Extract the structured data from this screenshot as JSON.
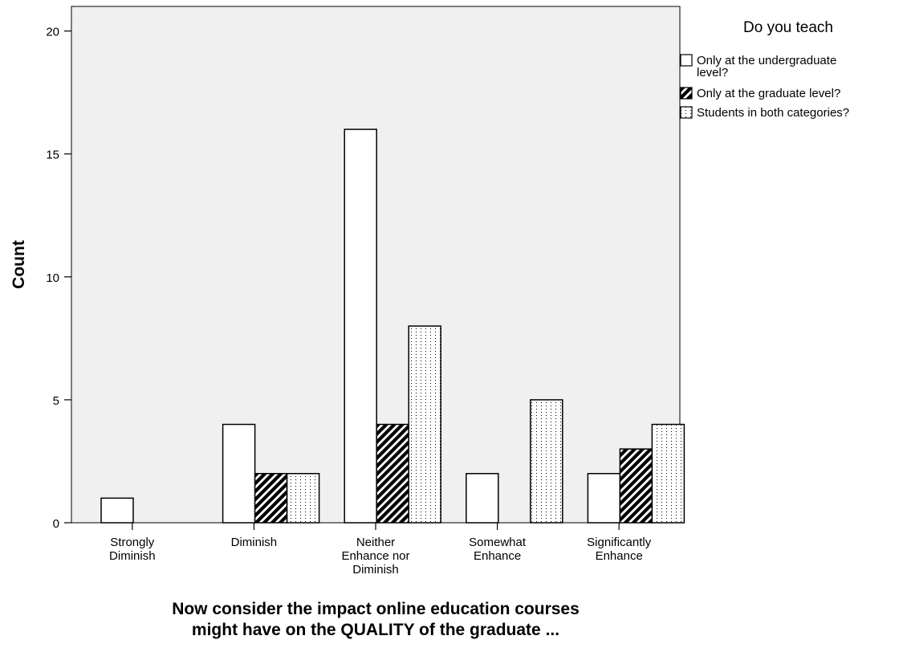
{
  "chart_data": {
    "type": "bar",
    "categories": [
      [
        "Strongly",
        "Diminish"
      ],
      [
        "Diminish"
      ],
      [
        "Neither",
        "Enhance nor",
        "Diminish"
      ],
      [
        "Somewhat",
        "Enhance"
      ],
      [
        "Significantly",
        "Enhance"
      ]
    ],
    "series": [
      {
        "name": "Only at the undergraduate level?",
        "pattern": "none",
        "values": [
          1,
          4,
          16,
          2,
          2
        ]
      },
      {
        "name": "Only at the graduate level?",
        "pattern": "diagonal-hatch",
        "values": [
          0,
          2,
          4,
          0,
          3
        ]
      },
      {
        "name": "Students in both categories?",
        "pattern": "dotted",
        "values": [
          0,
          2,
          8,
          5,
          4
        ]
      }
    ],
    "legend_title": "Do you teach",
    "legend_position": "right",
    "xlabel": [
      "Now consider the impact online education courses",
      "might have on the QUALITY of the graduate ..."
    ],
    "ylabel": "Count",
    "ylim": [
      0,
      21
    ],
    "yticks": [
      0,
      5,
      10,
      15,
      20
    ],
    "grid": false,
    "colors": {
      "plot_background": "#f0f0f0",
      "bar_fill": "#ffffff",
      "stroke": "#000000"
    }
  }
}
